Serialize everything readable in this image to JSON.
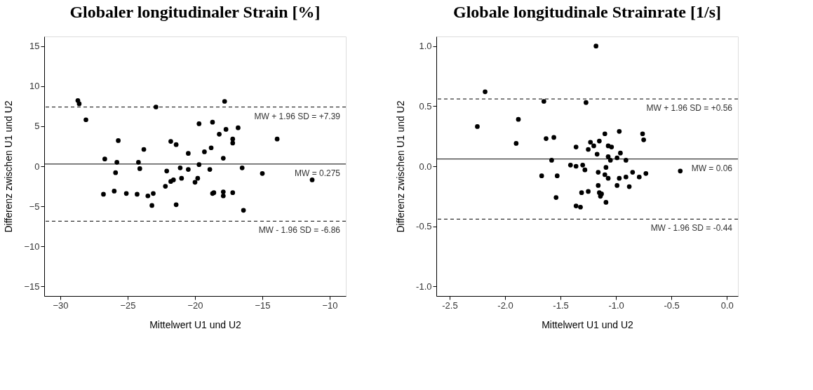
{
  "chart_data": [
    {
      "type": "scatter",
      "title": "Globaler longitudinaler Strain [%]",
      "xlabel": "Mittelwert U1 und U2",
      "ylabel": "Differenz zwischen U1 und U2",
      "x": [
        -28.7,
        -28.6,
        -28.1,
        -22.9,
        -25.7,
        -26.7,
        -25.8,
        -24.2,
        -23.8,
        -21.8,
        -21.4,
        -20.5,
        -24.1,
        -25.9,
        -22.1,
        -21.1,
        -20.5,
        -21.0,
        -21.6,
        -21.8,
        -22.2,
        -26.0,
        -26.8,
        -25.1,
        -24.3,
        -23.5,
        -23.1,
        -23.2,
        -21.4,
        -17.8,
        -19.7,
        -18.7,
        -16.8,
        -17.7,
        -18.2,
        -17.2,
        -17.2,
        -13.9,
        -18.8,
        -19.3,
        -17.9,
        -19.7,
        -18.9,
        -16.5,
        -15.0,
        -11.3,
        -19.8,
        -20.0,
        -18.7,
        -18.6,
        -17.9,
        -17.9,
        -17.2,
        -16.4
      ],
      "series": [
        {
          "color": "#000000",
          "values": [
            8.2,
            7.8,
            5.8,
            7.4,
            3.2,
            0.9,
            0.5,
            0.5,
            2.1,
            3.1,
            2.7,
            1.6,
            -0.3,
            -0.8,
            -0.6,
            -0.2,
            -0.4,
            -1.5,
            -1.7,
            -1.9,
            -2.5,
            -3.1,
            -3.5,
            -3.4,
            -3.5,
            -3.7,
            -3.4,
            -4.9,
            -4.8,
            8.1,
            5.3,
            5.5,
            4.8,
            4.6,
            4.0,
            3.4,
            2.9,
            3.4,
            2.3,
            1.8,
            1.0,
            0.2,
            -0.4,
            -0.2,
            -0.9,
            -1.7,
            -1.5,
            -2.0,
            -3.4,
            -3.3,
            -3.2,
            -3.7,
            -3.3,
            -5.5
          ]
        }
      ],
      "xlim": [
        -31.2,
        -8.8
      ],
      "ylim": [
        -16.2,
        16.2
      ],
      "xticks": [
        -30,
        -25,
        -20,
        -15,
        -10
      ],
      "yticks": [
        -15,
        -10,
        -5,
        0,
        5,
        10,
        15
      ],
      "ref_lines": [
        {
          "axis": "y",
          "value": 7.39,
          "label": "MW + 1.96 SD = +7.39",
          "color": "#000000",
          "line_style": "dashed"
        },
        {
          "axis": "y",
          "value": 0.275,
          "label": "MW = 0.275",
          "color": "#000000",
          "line_style": "solid"
        },
        {
          "axis": "y",
          "value": -6.86,
          "label": "MW - 1.96 SD = -6.86",
          "color": "#000000",
          "line_style": "dashed"
        }
      ],
      "grid": false,
      "marker": "circle"
    },
    {
      "type": "scatter",
      "title": "Globale longitudinale Strainrate [1/s]",
      "xlabel": "Mittelwert U1 und U2",
      "ylabel": "Differenz zwischen U1 und U2",
      "x": [
        -2.18,
        -1.65,
        -1.88,
        -2.25,
        -1.9,
        -1.63,
        -1.56,
        -1.58,
        -1.41,
        -1.67,
        -1.53,
        -1.54,
        -1.18,
        -1.27,
        -0.97,
        -1.1,
        -0.76,
        -0.75,
        -1.36,
        -1.23,
        -1.2,
        -1.15,
        -1.07,
        -1.04,
        -1.25,
        -1.17,
        -0.96,
        -1.07,
        -0.99,
        -1.05,
        -0.91,
        -1.36,
        -1.3,
        -1.28,
        -1.09,
        -1.16,
        -1.1,
        -1.07,
        -0.97,
        -0.91,
        -0.85,
        -0.79,
        -0.73,
        -0.42,
        -1.16,
        -0.99,
        -0.88,
        -1.31,
        -1.25,
        -1.15,
        -1.13,
        -1.14,
        -1.09,
        -1.36,
        -1.32
      ],
      "series": [
        {
          "color": "#000000",
          "values": [
            0.62,
            0.54,
            0.39,
            0.33,
            0.19,
            0.23,
            0.24,
            0.05,
            0.01,
            -0.08,
            -0.08,
            -0.26,
            1.0,
            0.53,
            0.29,
            0.27,
            0.27,
            0.22,
            0.16,
            0.2,
            0.17,
            0.21,
            0.17,
            0.16,
            0.14,
            0.1,
            0.11,
            0.08,
            0.07,
            0.05,
            0.05,
            0.0,
            0.01,
            -0.03,
            -0.01,
            -0.05,
            -0.07,
            -0.1,
            -0.1,
            -0.09,
            -0.05,
            -0.09,
            -0.06,
            -0.04,
            -0.16,
            -0.16,
            -0.17,
            -0.22,
            -0.21,
            -0.22,
            -0.23,
            -0.25,
            -0.3,
            -0.33,
            -0.34
          ]
        }
      ],
      "xlim": [
        -2.62,
        0.1
      ],
      "ylim": [
        -1.08,
        1.08
      ],
      "xticks": [
        {
          "value": -2.5,
          "label": "-2.5"
        },
        {
          "value": -2,
          "label": "-2.0"
        },
        {
          "value": -1.5,
          "label": "-1.5"
        },
        {
          "value": -1,
          "label": "-1.0"
        },
        {
          "value": -0.5,
          "label": "-0.5"
        },
        {
          "value": 0,
          "label": "0.0"
        }
      ],
      "yticks": [
        {
          "value": -1,
          "label": "-1.0"
        },
        {
          "value": -0.5,
          "label": "-0.5"
        },
        {
          "value": 0,
          "label": "0.0"
        },
        {
          "value": 0.5,
          "label": "0.5"
        },
        {
          "value": 1,
          "label": "1.0"
        }
      ],
      "ref_lines": [
        {
          "axis": "y",
          "value": 0.56,
          "label": "MW + 1.96 SD = +0.56",
          "color": "#000000",
          "line_style": "dashed"
        },
        {
          "axis": "y",
          "value": 0.06,
          "label": "MW = 0.06",
          "color": "#000000",
          "line_style": "solid"
        },
        {
          "axis": "y",
          "value": -0.44,
          "label": "MW - 1.96 SD = -0.44",
          "color": "#000000",
          "line_style": "dashed"
        }
      ],
      "grid": false,
      "marker": "circle"
    }
  ]
}
